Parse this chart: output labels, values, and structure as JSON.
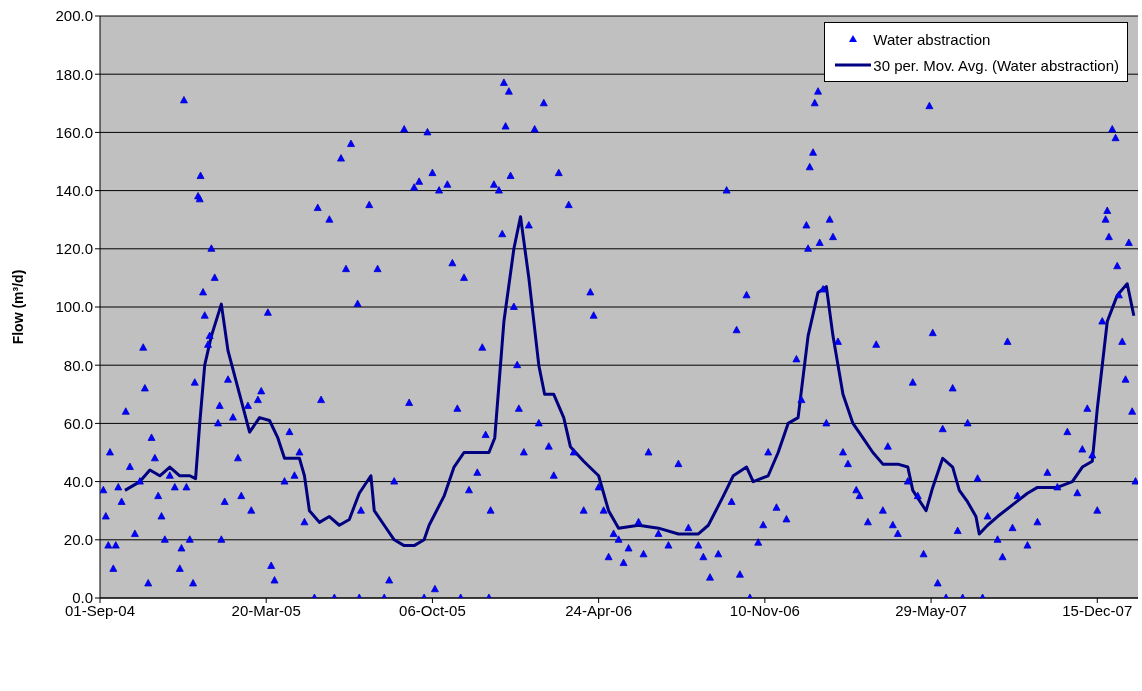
{
  "chart_data": {
    "type": "scatter",
    "ylabel": "Flow (m³/d)",
    "xlim": [
      "2004-09-01",
      "2008-02-02"
    ],
    "xticks": [
      {
        "value": "2004-09-01",
        "label": "01-Sep-04"
      },
      {
        "value": "2005-03-20",
        "label": "20-Mar-05"
      },
      {
        "value": "2005-10-06",
        "label": "06-Oct-05"
      },
      {
        "value": "2006-04-24",
        "label": "24-Apr-06"
      },
      {
        "value": "2006-11-10",
        "label": "10-Nov-06"
      },
      {
        "value": "2007-05-29",
        "label": "29-May-07"
      },
      {
        "value": "2007-12-15",
        "label": "15-Dec-07"
      }
    ],
    "ylim": [
      0,
      200
    ],
    "yticks": [
      {
        "value": 0,
        "label": "0.0"
      },
      {
        "value": 20,
        "label": "20.0"
      },
      {
        "value": 40,
        "label": "40.0"
      },
      {
        "value": 60,
        "label": "60.0"
      },
      {
        "value": 80,
        "label": "80.0"
      },
      {
        "value": 100,
        "label": "100.0"
      },
      {
        "value": 120,
        "label": "120.0"
      },
      {
        "value": 140,
        "label": "140.0"
      },
      {
        "value": 160,
        "label": "160.0"
      },
      {
        "value": 180,
        "label": "180.0"
      },
      {
        "value": 200,
        "label": "200.0"
      }
    ],
    "grid": "y",
    "legend": "top right",
    "marker": "triangle",
    "series": [
      {
        "name": "Water abstraction",
        "color": "#0000ff",
        "x": [
          "2004-09-05",
          "2004-09-08",
          "2004-09-11",
          "2004-09-13",
          "2004-09-17",
          "2004-09-20",
          "2004-09-23",
          "2004-09-27",
          "2004-10-02",
          "2004-10-07",
          "2004-10-13",
          "2004-10-19",
          "2004-10-23",
          "2004-10-25",
          "2004-10-29",
          "2004-11-02",
          "2004-11-06",
          "2004-11-10",
          "2004-11-14",
          "2004-11-18",
          "2004-11-24",
          "2004-11-30",
          "2004-12-06",
          "2004-12-08",
          "2004-12-11",
          "2004-12-14",
          "2004-12-18",
          "2004-12-22",
          "2004-12-24",
          "2004-12-28",
          "2004-12-30",
          "2004-12-31",
          "2005-01-03",
          "2005-01-05",
          "2005-01-09",
          "2005-01-11",
          "2005-01-13",
          "2005-01-17",
          "2005-01-21",
          "2005-01-23",
          "2005-01-25",
          "2005-01-29",
          "2005-02-02",
          "2005-02-08",
          "2005-02-14",
          "2005-02-18",
          "2005-02-26",
          "2005-03-02",
          "2005-03-10",
          "2005-03-14",
          "2005-03-22",
          "2005-03-26",
          "2005-03-30",
          "2005-04-11",
          "2005-04-17",
          "2005-04-23",
          "2005-04-29",
          "2005-05-05",
          "2005-05-17",
          "2005-05-21",
          "2005-05-25",
          "2005-06-04",
          "2005-06-10",
          "2005-06-18",
          "2005-06-24",
          "2005-06-30",
          "2005-07-08",
          "2005-07-10",
          "2005-07-12",
          "2005-07-22",
          "2005-08-01",
          "2005-08-09",
          "2005-08-15",
          "2005-08-21",
          "2005-09-02",
          "2005-09-08",
          "2005-09-14",
          "2005-09-20",
          "2005-09-26",
          "2005-09-30",
          "2005-10-06",
          "2005-10-09",
          "2005-10-14",
          "2005-10-24",
          "2005-10-30",
          "2005-11-05",
          "2005-11-09",
          "2005-11-13",
          "2005-11-19",
          "2005-11-29",
          "2005-12-05",
          "2005-12-09",
          "2005-12-13",
          "2005-12-15",
          "2005-12-19",
          "2005-12-25",
          "2005-12-29",
          "2005-12-31",
          "2006-01-02",
          "2006-01-06",
          "2006-01-08",
          "2006-01-12",
          "2006-01-16",
          "2006-01-18",
          "2006-01-24",
          "2006-01-30",
          "2006-02-06",
          "2006-02-11",
          "2006-02-17",
          "2006-02-23",
          "2006-03-01",
          "2006-03-07",
          "2006-03-19",
          "2006-03-25",
          "2006-04-06",
          "2006-04-14",
          "2006-04-18",
          "2006-04-24",
          "2006-04-30",
          "2006-05-06",
          "2006-05-12",
          "2006-05-18",
          "2006-05-24",
          "2006-05-30",
          "2006-06-11",
          "2006-06-17",
          "2006-06-23",
          "2006-07-05",
          "2006-07-17",
          "2006-07-29",
          "2006-08-10",
          "2006-08-22",
          "2006-08-28",
          "2006-09-05",
          "2006-09-15",
          "2006-09-25",
          "2006-10-01",
          "2006-10-07",
          "2006-10-11",
          "2006-10-19",
          "2006-10-23",
          "2006-11-02",
          "2006-11-08",
          "2006-11-14",
          "2006-11-24",
          "2006-12-06",
          "2006-12-18",
          "2006-12-24",
          "2006-12-30",
          "2007-01-01",
          "2007-01-03",
          "2007-01-07",
          "2007-01-09",
          "2007-01-13",
          "2007-01-15",
          "2007-01-19",
          "2007-01-23",
          "2007-01-27",
          "2007-01-31",
          "2007-02-06",
          "2007-02-12",
          "2007-02-18",
          "2007-02-28",
          "2007-03-04",
          "2007-03-14",
          "2007-03-24",
          "2007-04-01",
          "2007-04-07",
          "2007-04-13",
          "2007-04-19",
          "2007-05-01",
          "2007-05-07",
          "2007-05-13",
          "2007-05-20",
          "2007-05-27",
          "2007-05-31",
          "2007-06-06",
          "2007-06-12",
          "2007-06-16",
          "2007-06-24",
          "2007-06-30",
          "2007-07-06",
          "2007-07-12",
          "2007-07-24",
          "2007-07-30",
          "2007-08-05",
          "2007-08-17",
          "2007-08-23",
          "2007-08-29",
          "2007-09-04",
          "2007-09-10",
          "2007-09-22",
          "2007-10-04",
          "2007-10-16",
          "2007-10-28",
          "2007-11-09",
          "2007-11-21",
          "2007-11-27",
          "2007-12-03",
          "2007-12-09",
          "2007-12-15",
          "2007-12-21",
          "2007-12-25",
          "2007-12-27",
          "2007-12-29",
          "2008-01-02",
          "2008-01-06",
          "2008-01-08",
          "2008-01-10",
          "2008-01-14",
          "2008-01-18",
          "2008-01-22",
          "2008-01-26",
          "2008-01-30"
        ],
        "values": [
          37,
          28,
          18,
          50,
          10,
          18,
          38,
          33,
          64,
          45,
          22,
          40,
          86,
          72,
          5,
          55,
          48,
          35,
          28,
          20,
          42,
          38,
          10,
          17,
          171,
          38,
          20,
          5,
          74,
          138,
          137,
          145,
          105,
          97,
          87,
          90,
          120,
          110,
          60,
          66,
          20,
          33,
          75,
          62,
          48,
          35,
          66,
          30,
          68,
          71,
          98,
          11,
          6,
          40,
          57,
          42,
          50,
          26,
          0,
          134,
          68,
          130,
          0,
          151,
          113,
          156,
          101,
          0,
          30,
          135,
          113,
          0,
          6,
          40,
          161,
          67,
          141,
          143,
          0,
          160,
          146,
          3,
          140,
          142,
          115,
          65,
          0,
          110,
          37,
          43,
          86,
          56,
          0,
          30,
          142,
          140,
          125,
          177,
          162,
          174,
          145,
          100,
          80,
          65,
          50,
          128,
          161,
          60,
          170,
          52,
          42,
          146,
          135,
          50,
          30,
          105,
          97,
          38,
          30,
          14,
          22,
          20,
          12,
          17,
          26,
          15,
          50,
          22,
          18,
          46,
          24,
          18,
          14,
          7,
          15,
          140,
          33,
          92,
          8,
          104,
          0,
          19,
          25,
          50,
          31,
          27,
          82,
          68,
          128,
          120,
          148,
          153,
          170,
          174,
          122,
          106,
          60,
          130,
          124,
          88,
          50,
          46,
          37,
          35,
          26,
          87,
          30,
          52,
          25,
          22,
          40,
          74,
          35,
          15,
          169,
          91,
          5,
          58,
          0,
          72,
          23,
          0,
          60,
          41,
          0,
          28,
          20,
          14,
          88,
          24,
          35,
          18,
          26,
          43,
          38,
          57,
          36,
          51,
          65,
          49,
          30,
          95,
          130,
          133,
          124,
          161,
          158,
          114,
          104,
          88,
          75,
          122,
          64,
          40
        ]
      },
      {
        "name": "30 per. Mov. Avg. (Water abstraction)",
        "type": "line",
        "color": "#000080",
        "line_style": "solid",
        "marker": "none",
        "x": [
          "2004-10-01",
          "2004-10-19",
          "2004-10-31",
          "2004-11-12",
          "2004-11-24",
          "2004-12-06",
          "2004-12-18",
          "2004-12-25",
          "2004-12-30",
          "2005-01-05",
          "2005-01-13",
          "2005-01-25",
          "2005-02-02",
          "2005-02-16",
          "2005-02-28",
          "2005-03-12",
          "2005-03-24",
          "2005-04-03",
          "2005-04-11",
          "2005-04-29",
          "2005-05-05",
          "2005-05-11",
          "2005-05-23",
          "2005-06-04",
          "2005-06-16",
          "2005-06-28",
          "2005-07-10",
          "2005-07-24",
          "2005-07-28",
          "2005-08-09",
          "2005-08-21",
          "2005-09-02",
          "2005-09-14",
          "2005-09-26",
          "2005-10-02",
          "2005-10-20",
          "2005-11-01",
          "2005-11-13",
          "2005-11-25",
          "2005-12-13",
          "2005-12-20",
          "2005-12-31",
          "2006-01-12",
          "2006-01-20",
          "2006-01-30",
          "2006-02-11",
          "2006-02-18",
          "2006-03-01",
          "2006-03-13",
          "2006-03-21",
          "2006-04-06",
          "2006-04-24",
          "2006-05-06",
          "2006-05-18",
          "2006-06-11",
          "2006-07-05",
          "2006-07-29",
          "2006-08-22",
          "2006-09-03",
          "2006-09-21",
          "2006-10-03",
          "2006-10-19",
          "2006-10-27",
          "2006-11-14",
          "2006-11-26",
          "2006-12-08",
          "2006-12-20",
          "2007-01-01",
          "2007-01-13",
          "2007-01-23",
          "2007-01-31",
          "2007-02-12",
          "2007-02-24",
          "2007-03-08",
          "2007-03-20",
          "2007-04-01",
          "2007-04-19",
          "2007-05-01",
          "2007-05-07",
          "2007-05-23",
          "2007-05-31",
          "2007-06-12",
          "2007-06-24",
          "2007-07-02",
          "2007-07-12",
          "2007-07-22",
          "2007-07-26",
          "2007-08-05",
          "2007-08-17",
          "2007-09-04",
          "2007-09-22",
          "2007-10-04",
          "2007-10-28",
          "2007-11-15",
          "2007-11-27",
          "2007-12-09",
          "2007-12-15",
          "2007-12-27",
          "2008-01-08",
          "2008-01-20",
          "2008-01-28"
        ],
        "values": [
          37,
          40,
          44,
          42,
          45,
          42,
          42,
          41,
          60,
          80,
          90,
          101,
          85,
          70,
          57,
          62,
          61,
          55,
          48,
          48,
          42,
          30,
          26,
          28,
          25,
          27,
          36,
          42,
          30,
          25,
          20,
          18,
          18,
          20,
          25,
          35,
          45,
          50,
          50,
          50,
          55,
          95,
          120,
          131,
          110,
          80,
          70,
          70,
          62,
          52,
          47,
          42,
          30,
          24,
          25,
          24,
          22,
          22,
          25,
          35,
          42,
          45,
          40,
          42,
          50,
          60,
          62,
          90,
          105,
          107,
          90,
          70,
          60,
          55,
          50,
          46,
          46,
          45,
          37,
          30,
          38,
          48,
          45,
          37,
          33,
          28,
          22,
          25,
          28,
          32,
          36,
          38,
          38,
          40,
          45,
          47,
          65,
          95,
          104,
          108,
          97
        ]
      }
    ]
  }
}
